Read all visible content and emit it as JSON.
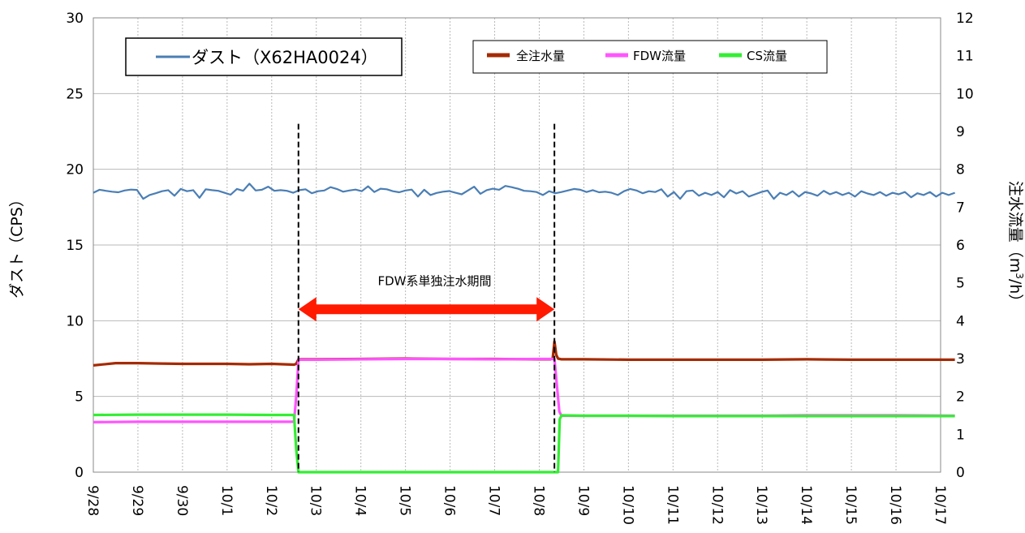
{
  "chart_data": {
    "type": "line",
    "x_categories": [
      "9/28",
      "9/29",
      "9/30",
      "10/1",
      "10/2",
      "10/3",
      "10/4",
      "10/5",
      "10/6",
      "10/7",
      "10/8",
      "10/9",
      "10/10",
      "10/11",
      "10/12",
      "10/13",
      "10/14",
      "10/15",
      "10/16",
      "10/17"
    ],
    "y_left": {
      "label": "ダスト（CPS）",
      "range": [
        0,
        30
      ],
      "ticks": [
        0,
        5,
        10,
        15,
        20,
        25,
        30
      ]
    },
    "y_right": {
      "label_main": "注水流量（m",
      "label_sup": "3",
      "label_tail": "/h）",
      "range": [
        0,
        12
      ],
      "ticks": [
        0,
        1,
        2,
        3,
        4,
        5,
        6,
        7,
        8,
        9,
        10,
        11,
        12
      ]
    },
    "grid": true,
    "colors": {
      "dust": "#4a7eb5",
      "total": "#a52a00",
      "fdw": "#ff55ff",
      "cs": "#33ee33",
      "arrow": "#ff1a00"
    },
    "series": [
      {
        "name": "ダスト（X62HA0024）",
        "axis": "left",
        "x": [
          0,
          0.14,
          0.28,
          0.42,
          0.56,
          0.7,
          0.84,
          0.98,
          1.12,
          1.26,
          1.4,
          1.54,
          1.68,
          1.82,
          1.96,
          2.1,
          2.24,
          2.38,
          2.52,
          2.66,
          2.8,
          2.94,
          3.08,
          3.22,
          3.36,
          3.5,
          3.64,
          3.78,
          3.92,
          4.06,
          4.2,
          4.34,
          4.48,
          4.62,
          4.76,
          4.9,
          5.04,
          5.18,
          5.32,
          5.46,
          5.6,
          5.74,
          5.88,
          6.02,
          6.16,
          6.3,
          6.44,
          6.58,
          6.72,
          6.86,
          7,
          7.14,
          7.28,
          7.42,
          7.56,
          7.7,
          7.84,
          7.98,
          8.12,
          8.26,
          8.4,
          8.54,
          8.68,
          8.82,
          8.96,
          9.1,
          9.24,
          9.38,
          9.52,
          9.66,
          9.8,
          9.94,
          10.08,
          10.22,
          10.36,
          10.5,
          10.64,
          10.78,
          10.92,
          11.06,
          11.2,
          11.34,
          11.48,
          11.62,
          11.76,
          11.9,
          12.04,
          12.18,
          12.32,
          12.46,
          12.6,
          12.74,
          12.88,
          13.02,
          13.16,
          13.3,
          13.44,
          13.58,
          13.72,
          13.86,
          14,
          14.14,
          14.28,
          14.42,
          14.56,
          14.7,
          14.84,
          14.98,
          15.12,
          15.26,
          15.4,
          15.54,
          15.68,
          15.82,
          15.96,
          16.1,
          16.24,
          16.38,
          16.52,
          16.66,
          16.8,
          16.94,
          17.08,
          17.22,
          17.36,
          17.5,
          17.64,
          17.78,
          17.92,
          18.06,
          18.2,
          18.34,
          18.48,
          18.62,
          18.76,
          18.9,
          19.04,
          19.18,
          19.32
        ],
        "values": [
          18.45,
          18.65,
          18.58,
          18.52,
          18.48,
          18.6,
          18.66,
          18.64,
          18.05,
          18.3,
          18.42,
          18.55,
          18.62,
          18.25,
          18.7,
          18.55,
          18.62,
          18.12,
          18.68,
          18.62,
          18.58,
          18.45,
          18.32,
          18.7,
          18.58,
          19.05,
          18.6,
          18.65,
          18.85,
          18.58,
          18.62,
          18.58,
          18.45,
          18.62,
          18.68,
          18.42,
          18.55,
          18.6,
          18.82,
          18.7,
          18.52,
          18.6,
          18.66,
          18.55,
          18.88,
          18.5,
          18.72,
          18.68,
          18.55,
          18.48,
          18.6,
          18.66,
          18.2,
          18.65,
          18.3,
          18.44,
          18.52,
          18.56,
          18.45,
          18.35,
          18.6,
          18.85,
          18.38,
          18.62,
          18.72,
          18.65,
          18.9,
          18.82,
          18.72,
          18.58,
          18.55,
          18.5,
          18.3,
          18.55,
          18.42,
          18.5,
          18.6,
          18.7,
          18.65,
          18.5,
          18.62,
          18.48,
          18.52,
          18.45,
          18.3,
          18.55,
          18.7,
          18.6,
          18.42,
          18.55,
          18.5,
          18.68,
          18.2,
          18.5,
          18.05,
          18.55,
          18.6,
          18.25,
          18.45,
          18.3,
          18.5,
          18.15,
          18.62,
          18.4,
          18.55,
          18.2,
          18.35,
          18.5,
          18.6,
          18.05,
          18.45,
          18.3,
          18.55,
          18.2,
          18.5,
          18.4,
          18.25,
          18.58,
          18.35,
          18.5,
          18.3,
          18.45,
          18.2,
          18.55,
          18.4,
          18.3,
          18.5,
          18.25,
          18.45,
          18.35,
          18.5,
          18.15,
          18.42,
          18.3,
          18.5,
          18.2,
          18.45,
          18.3,
          18.45
        ]
      },
      {
        "name": "全注水量",
        "axis": "right",
        "x": [
          0,
          0.5,
          1,
          1.5,
          2,
          2.5,
          3,
          3.5,
          4,
          4.5,
          4.55,
          4.6,
          5,
          6,
          7,
          8,
          9,
          10,
          10.25,
          10.3,
          10.34,
          10.38,
          10.42,
          10.5,
          11,
          12,
          13,
          14,
          15,
          16,
          17,
          18,
          19.32
        ],
        "values": [
          2.82,
          2.88,
          2.88,
          2.87,
          2.86,
          2.86,
          2.86,
          2.85,
          2.86,
          2.84,
          2.86,
          2.98,
          2.98,
          2.99,
          3.0,
          2.99,
          2.99,
          2.98,
          2.98,
          3.0,
          3.45,
          3.1,
          3.0,
          2.98,
          2.98,
          2.97,
          2.97,
          2.97,
          2.97,
          2.98,
          2.97,
          2.97,
          2.97
        ]
      },
      {
        "name": "FDW流量",
        "axis": "right",
        "x": [
          0,
          1,
          2,
          3,
          4,
          4.5,
          4.55,
          4.6,
          5,
          6,
          7,
          8,
          9,
          10,
          10.3,
          10.34,
          10.45,
          10.5,
          11,
          12,
          13,
          14,
          15,
          16,
          17,
          18,
          19.32
        ],
        "values": [
          1.32,
          1.33,
          1.33,
          1.33,
          1.33,
          1.33,
          2.0,
          2.97,
          2.97,
          2.98,
          2.99,
          2.99,
          2.98,
          2.99,
          2.99,
          2.99,
          1.6,
          1.49,
          1.49,
          1.49,
          1.49,
          1.49,
          1.49,
          1.5,
          1.5,
          1.5,
          1.49
        ]
      },
      {
        "name": "CS流量",
        "axis": "right",
        "x": [
          0,
          1,
          2,
          3,
          4,
          4.5,
          4.55,
          4.6,
          5,
          10,
          10.3,
          10.34,
          10.42,
          10.46,
          10.5,
          11,
          12,
          13,
          14,
          15,
          16,
          17,
          18,
          19.32
        ],
        "values": [
          1.51,
          1.52,
          1.52,
          1.52,
          1.51,
          1.51,
          0.6,
          0.0,
          0.0,
          0.0,
          0.0,
          0.0,
          0.0,
          1.4,
          1.5,
          1.49,
          1.49,
          1.48,
          1.48,
          1.48,
          1.48,
          1.48,
          1.48,
          1.48
        ]
      }
    ],
    "annotations": [
      {
        "text": "FDW系単独注水期間",
        "type": "double-arrow",
        "x_from": 4.6,
        "x_to": 10.34,
        "y_right": 4.3
      }
    ],
    "vertical_lines": [
      {
        "x": 4.6,
        "from_right": 0,
        "to_right": 9.2,
        "style": "dashed"
      },
      {
        "x": 10.34,
        "from_right": 0,
        "to_right": 9.2,
        "style": "dashed"
      }
    ],
    "legends": [
      {
        "items": [
          "ダスト（X62HA0024）"
        ]
      },
      {
        "items": [
          "全注水量",
          "FDW流量",
          "CS流量"
        ]
      }
    ]
  }
}
